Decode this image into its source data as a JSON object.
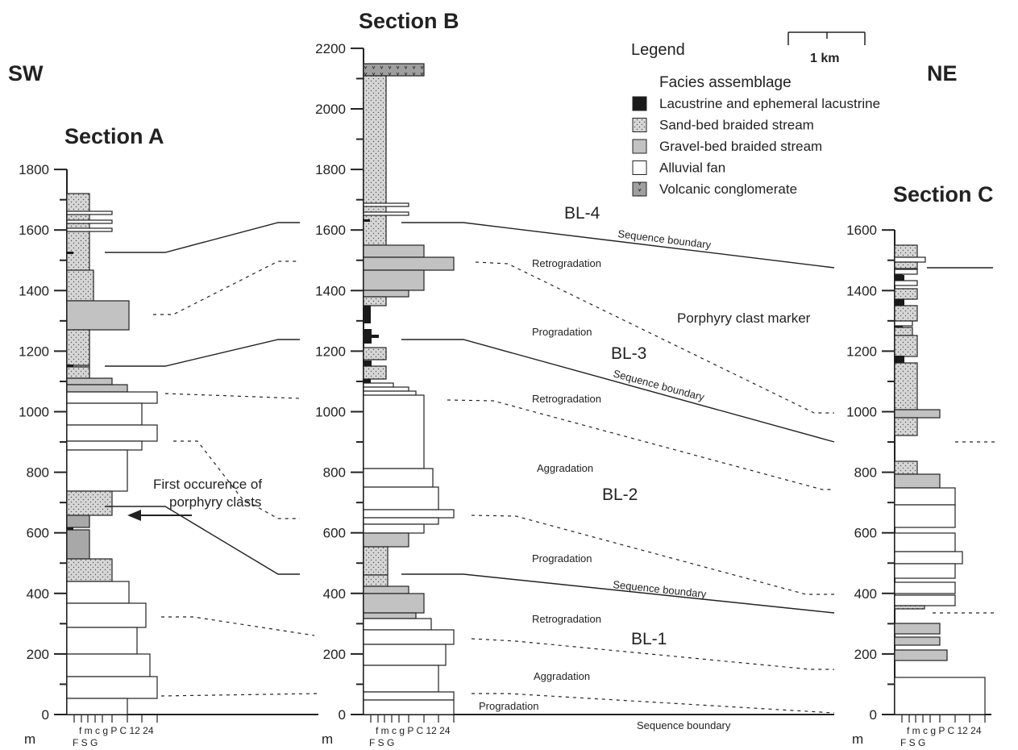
{
  "titles": {
    "sw": "SW",
    "ne": "NE",
    "section_a": "Section A",
    "section_b": "Section B",
    "section_c": "Section C"
  },
  "axes": {
    "unit": "m",
    "grain_upper": "f m c g P  C 12 24",
    "grain_lower": "F  S       G",
    "a_ticks": [
      "0",
      "200",
      "400",
      "600",
      "800",
      "1000",
      "1200",
      "1400",
      "1600",
      "1800"
    ],
    "b_ticks": [
      "0",
      "200",
      "400",
      "600",
      "800",
      "1000",
      "1200",
      "1400",
      "1600",
      "1800",
      "2000",
      "2200"
    ],
    "c_ticks": [
      "0",
      "200",
      "400",
      "600",
      "800",
      "1000",
      "1200",
      "1400",
      "1600"
    ]
  },
  "legend": {
    "title": "Legend",
    "subtitle": "Facies assemblage",
    "scale_label": "1  km",
    "items": [
      {
        "label": "Lacustrine and ephemeral lacustrine",
        "fill": "#1a1a1a"
      },
      {
        "label": "Sand-bed braided stream",
        "fill": "#c8c8c8"
      },
      {
        "label": "Gravel-bed braided stream",
        "fill": "#bdbdbd"
      },
      {
        "label": "Alluvial fan",
        "fill": "#ffffff"
      },
      {
        "label": "Volcanic conglomerate",
        "fill": "#9a9a9a"
      }
    ]
  },
  "annotations": {
    "first_occurrence_1": "First occurence of",
    "first_occurrence_2": "porphyry clasts",
    "porphyry_marker": "Porphyry clast marker",
    "bl1": "BL-1",
    "bl2": "BL-2",
    "bl3": "BL-3",
    "bl4": "BL-4",
    "seq1": "Sequence boundary",
    "seq2": "Sequence boundary",
    "seq3": "Sequence boundary",
    "seq4": "Sequence boundary",
    "retro1": "Retrogradation",
    "retro2": "Retrogradation",
    "retro3": "Retrogradation",
    "prog1": "Progradation",
    "prog2": "Progradation",
    "prog3": "Progradation",
    "aggr1": "Aggradation",
    "aggr2": "Aggradation"
  },
  "colors": {
    "lacustrine": "#1a1a1a",
    "sand": "#d4d4d4",
    "gravel": "#c2c2c2",
    "fan": "#ffffff",
    "volcanic": "#a0a0a0",
    "dark_gravel": "#a8a8a8"
  }
}
